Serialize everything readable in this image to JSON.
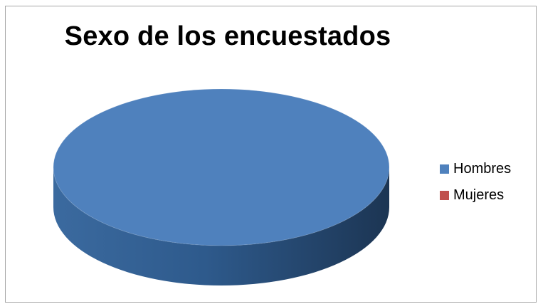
{
  "chart_data": {
    "type": "pie",
    "title": "Sexo de los encuestados",
    "style": "3d",
    "legend_position": "right",
    "slices": [
      {
        "label": "Hombres",
        "value": 100,
        "color": "#4f81bd"
      },
      {
        "label": "Mujeres",
        "value": 0,
        "color": "#c0504d"
      }
    ]
  }
}
